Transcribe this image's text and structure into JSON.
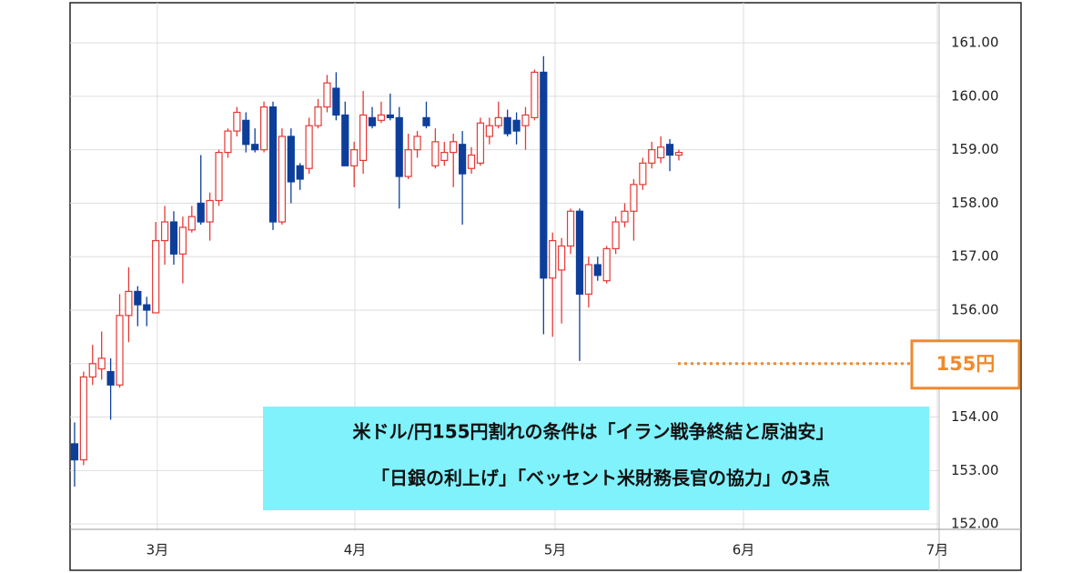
{
  "chart_data": {
    "type": "candlestick",
    "x": [
      0,
      1,
      2,
      3,
      4,
      5,
      6,
      7,
      8,
      9,
      10,
      11,
      12,
      13,
      14,
      15,
      16,
      17,
      18,
      19,
      20,
      21,
      22,
      23,
      24,
      25,
      26,
      27,
      28,
      29,
      30,
      31,
      32,
      33,
      34,
      35,
      36,
      37,
      38,
      39,
      40,
      41,
      42,
      43,
      44,
      45,
      46,
      47,
      48,
      49,
      50,
      51,
      52,
      53,
      54,
      55,
      56,
      57,
      58,
      59,
      60,
      61,
      62,
      63,
      64,
      65,
      66,
      67
    ],
    "open": [
      153.5,
      153.2,
      154.75,
      154.9,
      154.85,
      154.6,
      155.9,
      156.35,
      156.1,
      155.95,
      157.3,
      157.65,
      157.05,
      157.5,
      158.0,
      157.65,
      158.05,
      158.95,
      159.35,
      159.55,
      159.1,
      159.0,
      159.8,
      157.65,
      159.25,
      158.7,
      158.65,
      159.45,
      159.8,
      160.15,
      159.65,
      158.7,
      158.8,
      159.6,
      159.55,
      159.65,
      159.6,
      158.5,
      159.0,
      159.6,
      158.7,
      158.8,
      158.95,
      159.1,
      158.65,
      158.75,
      159.25,
      159.45,
      159.6,
      159.55,
      159.45,
      159.6,
      160.45,
      156.6,
      156.75,
      157.2,
      157.85,
      156.3,
      156.85,
      156.55,
      157.15,
      157.65,
      157.85,
      158.35,
      158.75,
      158.85,
      159.1,
      158.9
    ],
    "high": [
      153.9,
      154.85,
      155.35,
      155.6,
      155.1,
      156.3,
      156.8,
      156.45,
      156.25,
      157.65,
      157.95,
      157.85,
      157.75,
      157.95,
      158.9,
      158.2,
      159.0,
      159.4,
      159.8,
      159.7,
      159.4,
      159.9,
      159.9,
      159.4,
      159.4,
      158.75,
      159.6,
      159.95,
      160.4,
      160.45,
      159.9,
      159.15,
      160.1,
      159.8,
      159.9,
      160.05,
      159.8,
      159.3,
      159.35,
      159.9,
      159.4,
      159.15,
      159.3,
      159.35,
      159.05,
      159.6,
      159.6,
      159.9,
      159.75,
      159.7,
      159.8,
      160.5,
      160.75,
      157.45,
      157.35,
      157.9,
      157.9,
      157.0,
      157.0,
      157.2,
      157.75,
      158.0,
      158.45,
      158.85,
      159.15,
      159.25,
      159.2,
      159.0
    ],
    "low": [
      152.7,
      153.1,
      154.6,
      154.7,
      153.95,
      154.55,
      155.4,
      155.7,
      155.7,
      155.95,
      156.85,
      156.85,
      156.5,
      157.45,
      157.6,
      157.3,
      157.95,
      158.85,
      159.25,
      158.95,
      158.95,
      158.95,
      157.5,
      157.6,
      158.0,
      158.25,
      158.55,
      159.4,
      159.7,
      159.55,
      158.7,
      158.3,
      158.55,
      159.4,
      159.5,
      159.55,
      157.9,
      158.45,
      158.85,
      159.4,
      158.65,
      158.7,
      158.3,
      157.6,
      158.55,
      158.7,
      159.1,
      159.4,
      159.25,
      159.1,
      159.0,
      159.55,
      155.55,
      155.5,
      155.75,
      157.05,
      155.05,
      156.05,
      156.55,
      156.5,
      157.05,
      157.55,
      157.3,
      158.25,
      158.65,
      158.75,
      158.6,
      158.8
    ],
    "close": [
      153.2,
      154.75,
      155.0,
      155.1,
      154.6,
      155.9,
      156.35,
      156.1,
      156.0,
      157.3,
      157.65,
      157.05,
      157.55,
      157.75,
      157.65,
      158.05,
      158.95,
      159.35,
      159.7,
      159.1,
      159.0,
      159.8,
      157.65,
      159.25,
      158.4,
      158.45,
      159.45,
      159.8,
      160.25,
      159.65,
      158.7,
      159.0,
      159.65,
      159.45,
      159.65,
      159.6,
      158.5,
      159.0,
      159.25,
      159.45,
      159.15,
      158.95,
      159.15,
      158.55,
      158.9,
      159.5,
      159.45,
      159.6,
      159.3,
      159.35,
      159.65,
      160.45,
      156.6,
      157.3,
      157.2,
      157.85,
      156.3,
      156.85,
      156.65,
      157.15,
      157.65,
      157.85,
      158.35,
      158.75,
      159.0,
      159.05,
      158.9,
      158.95
    ],
    "up_color": "#e53935",
    "down_color": "#0d3f9a",
    "xlim": [
      -0.5,
      95.86
    ],
    "xticks": [
      {
        "value": 9.18,
        "label": "3月"
      },
      {
        "value": 31.08,
        "label": "4月"
      },
      {
        "value": 53.28,
        "label": "5月"
      },
      {
        "value": 74.17,
        "label": "6月"
      },
      {
        "value": 95.66,
        "label": "7月"
      }
    ],
    "ylim": [
      151.9,
      161.75
    ],
    "yticks": [
      {
        "value": 152,
        "label": "152.00"
      },
      {
        "value": 153,
        "label": "153.00"
      },
      {
        "value": 154,
        "label": "154.00"
      },
      {
        "value": 155,
        "label": "155.00"
      },
      {
        "value": 156,
        "label": "156.00"
      },
      {
        "value": 157,
        "label": "157.00"
      },
      {
        "value": 158,
        "label": "158.00"
      },
      {
        "value": 159,
        "label": "159.00"
      },
      {
        "value": 160,
        "label": "160.00"
      },
      {
        "value": 161,
        "label": "161.00"
      }
    ],
    "grid": true,
    "reference_line": {
      "value": 155,
      "label": "155円",
      "color": "#f08a2c"
    },
    "annotation": {
      "lines": [
        "米ドル/円155円割れの条件は「イラン戦争終結と原油安」",
        "「日銀の利上げ」「ベッセント米財務長官の協力」の3点"
      ],
      "color": "#80f2fc"
    }
  }
}
